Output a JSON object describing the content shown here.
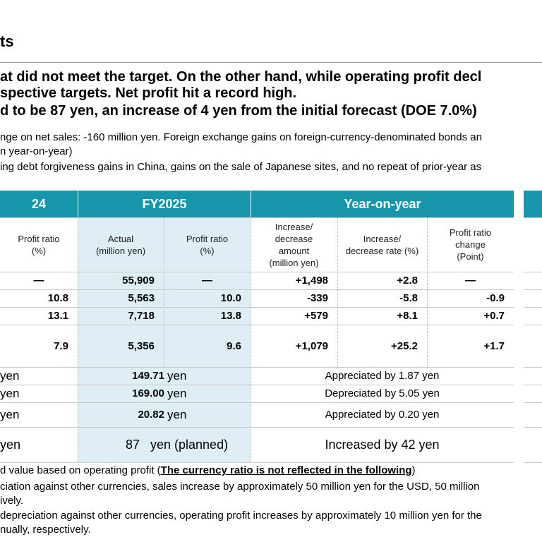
{
  "header": {
    "title": "ts"
  },
  "bullets": [
    "at did not meet the target. On the other hand, while operating profit decl",
    "spective targets. Net profit hit a record high.",
    "d to be 87 yen, an increase of 4 yen from the initial forecast (DOE 7.0%)"
  ],
  "notes": [
    "nge on net sales: -160 million yen. Foreign exchange gains on foreign-currency-denominated bonds an",
    "n year-on-year)",
    "ing debt forgiveness gains in China, gains on the sale of Japanese sites, and no repeat of prior-year as"
  ],
  "table": {
    "header": [
      "24",
      "FY2025",
      "Year-on-year"
    ],
    "subheader": [
      [
        "Profit ratio",
        "(%)"
      ],
      [
        "Actual",
        "(million yen)"
      ],
      [
        "Profit ratio",
        "(%)"
      ],
      [
        "Increase/",
        "decrease",
        "amount",
        "(million yen)"
      ],
      [
        "Increase/",
        "decrease rate (%)"
      ],
      [
        "Profit ratio",
        "change",
        "(Point)"
      ]
    ],
    "rows": [
      [
        "—",
        "55,909",
        "—",
        "+1,498",
        "+2.8",
        "—"
      ],
      [
        "10.8",
        "5,563",
        "10.0",
        "-339",
        "-5.8",
        "-0.9"
      ],
      [
        "13.1",
        "7,718",
        "13.8",
        "+579",
        "+8.1",
        "+0.7"
      ],
      [
        "7.9",
        "5,356",
        "9.6",
        "+1,079",
        "+25.2",
        "+1.7"
      ]
    ],
    "rates": [
      {
        "left": "yen",
        "value": "149.71",
        "unit": "yen",
        "change": "Appreciated by 1.87 yen"
      },
      {
        "left": "yen",
        "value": "169.00",
        "unit": "yen",
        "change": "Depreciated by 5.05 yen"
      },
      {
        "left": "yen",
        "value": "20.82",
        "unit": "yen",
        "change": "Appreciated by 0.20 yen"
      },
      {
        "left": "yen",
        "value": "87",
        "unit": "yen (planned)",
        "change": "Increased by 42 yen"
      }
    ]
  },
  "footer": {
    "prefix": "d value based on operating profit (",
    "emphasis": "The currency ratio is not reflected in the following",
    "suffix": ")",
    "lines": [
      "ciation against other currencies, sales increase by approximately 50 million yen for the USD, 50 million",
      "ively.",
      "depreciation against other currencies, operating profit increases by approximately 10 million yen for the",
      "nually, respectively."
    ]
  }
}
